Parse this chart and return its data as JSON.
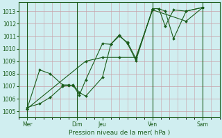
{
  "title": "",
  "xlabel": "Pression niveau de la mer( hPa )",
  "ylim": [
    1004.5,
    1013.7
  ],
  "xlim": [
    0,
    96
  ],
  "yticks": [
    1005,
    1006,
    1007,
    1008,
    1009,
    1010,
    1011,
    1012,
    1013
  ],
  "xtick_positions": [
    4,
    28,
    40,
    64,
    88
  ],
  "xtick_labels": [
    "Mer",
    "Dim",
    "Jeu",
    "Ven",
    "Sam"
  ],
  "vline_positions": [
    4,
    28,
    64,
    88
  ],
  "bg_color": "#d0eef0",
  "line_color": "#1a5c1a",
  "grid_color": "#c8a0a8",
  "series1_x": [
    4,
    10,
    15,
    21,
    24,
    26,
    29,
    32,
    40,
    44,
    48,
    52,
    56,
    64,
    67,
    70,
    74,
    80,
    88
  ],
  "series1_y": [
    1005.3,
    1005.6,
    1006.1,
    1007.0,
    1007.05,
    1007.1,
    1006.5,
    1006.2,
    1007.7,
    1010.35,
    1011.0,
    1010.5,
    1009.2,
    1013.2,
    1013.2,
    1013.0,
    1010.8,
    1013.0,
    1013.3
  ],
  "series2_x": [
    4,
    10,
    15,
    21,
    24,
    26,
    29,
    32,
    40,
    44,
    48,
    52,
    56,
    64,
    67,
    70,
    74,
    80,
    88
  ],
  "series2_y": [
    1005.2,
    1008.3,
    1008.0,
    1007.1,
    1007.1,
    1007.05,
    1006.3,
    1007.5,
    1010.4,
    1010.35,
    1011.1,
    1010.4,
    1009.05,
    1013.2,
    1013.2,
    1011.8,
    1013.1,
    1013.0,
    1013.3
  ],
  "series3_x": [
    4,
    32,
    40,
    48,
    56,
    64,
    80,
    88
  ],
  "series3_y": [
    1005.2,
    1009.0,
    1009.3,
    1009.3,
    1009.3,
    1013.1,
    1012.2,
    1013.3
  ],
  "minor_xtick_count": 25
}
